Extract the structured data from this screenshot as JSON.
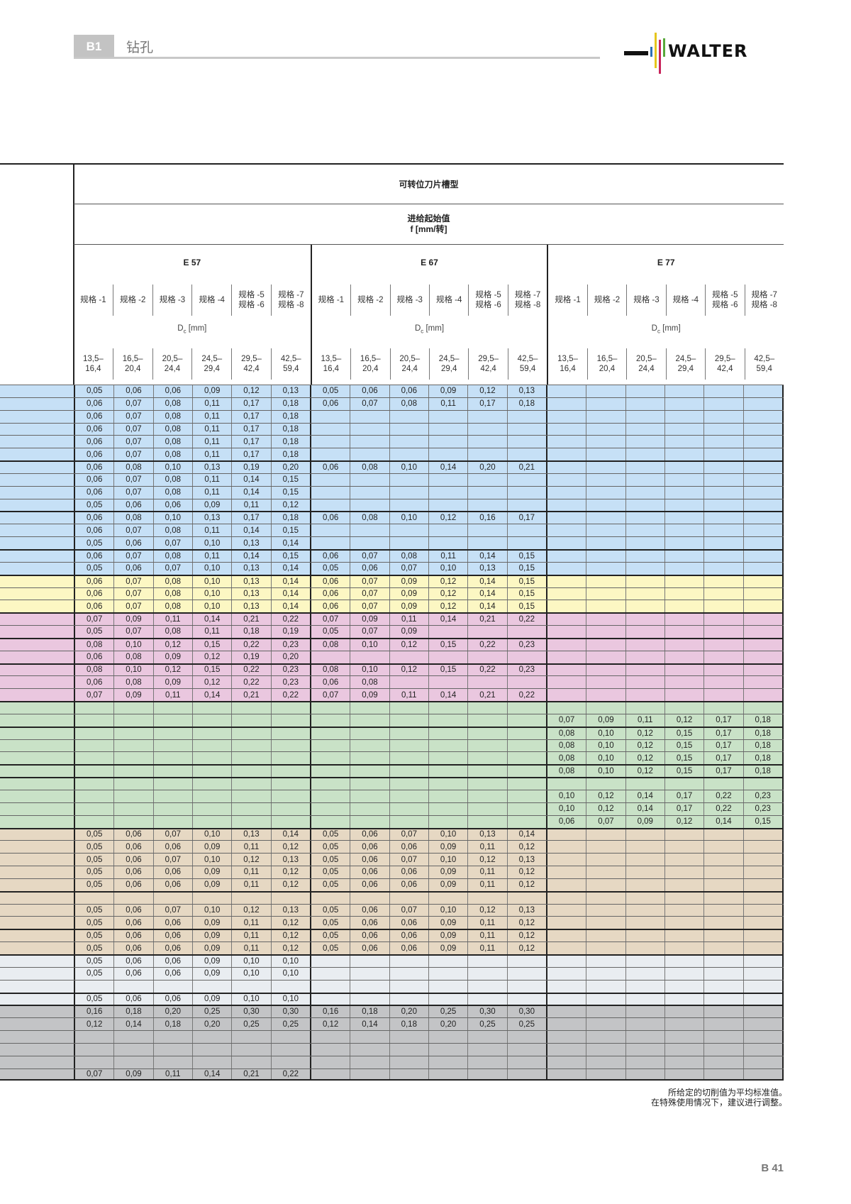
{
  "header": {
    "chapter_code": "B1",
    "chapter_title": "钻孔",
    "logo_text": "WALTER"
  },
  "table": {
    "title": "可转位刀片槽型",
    "feed_label": "进给起始值",
    "feed_unit": "f [mm/转]",
    "groups": [
      "E 57",
      "E 67",
      "E 77"
    ],
    "sizes": [
      "规格 -1",
      "规格 -2",
      "规格 -3",
      "规格 -4",
      "规格 -5\n规格 -6",
      "规格 -7\n规格 -8"
    ],
    "dc_label": {
      "main": "D",
      "sub": "c",
      "unit": " [mm]"
    },
    "ranges": [
      "13,5–\n16,4",
      "16,5–\n20,4",
      "20,5–\n24,4",
      "24,5–\n29,4",
      "29,5–\n42,4",
      "42,5–\n59,4"
    ],
    "band_colors": {
      "blue": "#c6e0f6",
      "yellow": "#fcf7c3",
      "pink": "#eac7df",
      "green": "#c9e2c7",
      "tan": "#e6d8c3",
      "lightgray": "#e9edf1",
      "darkgray": "#c3c4c6"
    },
    "rows": [
      {
        "band": "blue",
        "e57": [
          "0,05",
          "0,06",
          "0,06",
          "0,09",
          "0,12",
          "0,13"
        ],
        "e67": [
          "0,05",
          "0,06",
          "0,06",
          "0,09",
          "0,12",
          "0,13"
        ],
        "e77": []
      },
      {
        "band": "blue",
        "e57": [
          "0,06",
          "0,07",
          "0,08",
          "0,11",
          "0,17",
          "0,18"
        ],
        "e67": [
          "0,06",
          "0,07",
          "0,08",
          "0,11",
          "0,17",
          "0,18"
        ],
        "e77": []
      },
      {
        "band": "blue",
        "e57": [
          "0,06",
          "0,07",
          "0,08",
          "0,11",
          "0,17",
          "0,18"
        ],
        "e67": [],
        "e77": []
      },
      {
        "band": "blue",
        "e57": [
          "0,06",
          "0,07",
          "0,08",
          "0,11",
          "0,17",
          "0,18"
        ],
        "e67": [],
        "e77": []
      },
      {
        "band": "blue",
        "e57": [
          "0,06",
          "0,07",
          "0,08",
          "0,11",
          "0,17",
          "0,18"
        ],
        "e67": [],
        "e77": []
      },
      {
        "band": "blue",
        "e57": [
          "0,06",
          "0,07",
          "0,08",
          "0,11",
          "0,17",
          "0,18"
        ],
        "e67": [],
        "e77": []
      },
      {
        "band": "blue",
        "e57": [
          "0,06",
          "0,08",
          "0,10",
          "0,13",
          "0,19",
          "0,20"
        ],
        "e67": [
          "0,06",
          "0,08",
          "0,10",
          "0,14",
          "0,20",
          "0,21"
        ],
        "e77": []
      },
      {
        "band": "blue",
        "e57": [
          "0,06",
          "0,07",
          "0,08",
          "0,11",
          "0,14",
          "0,15"
        ],
        "e67": [],
        "e77": []
      },
      {
        "band": "blue",
        "e57": [
          "0,06",
          "0,07",
          "0,08",
          "0,11",
          "0,14",
          "0,15"
        ],
        "e67": [],
        "e77": []
      },
      {
        "band": "blue",
        "e57": [
          "0,05",
          "0,06",
          "0,06",
          "0,09",
          "0,11",
          "0,12"
        ],
        "e67": [],
        "e77": []
      },
      {
        "band": "blue",
        "e57": [
          "0,06",
          "0,08",
          "0,10",
          "0,13",
          "0,17",
          "0,18"
        ],
        "e67": [
          "0,06",
          "0,08",
          "0,10",
          "0,12",
          "0,16",
          "0,17"
        ],
        "e77": []
      },
      {
        "band": "blue",
        "e57": [
          "0,06",
          "0,07",
          "0,08",
          "0,11",
          "0,14",
          "0,15"
        ],
        "e67": [],
        "e77": []
      },
      {
        "band": "blue",
        "e57": [
          "0,05",
          "0,06",
          "0,07",
          "0,10",
          "0,13",
          "0,14"
        ],
        "e67": [],
        "e77": []
      },
      {
        "band": "blue",
        "e57": [
          "0,06",
          "0,07",
          "0,08",
          "0,11",
          "0,14",
          "0,15"
        ],
        "e67": [
          "0,06",
          "0,07",
          "0,08",
          "0,11",
          "0,14",
          "0,15"
        ],
        "e77": []
      },
      {
        "band": "blue",
        "e57": [
          "0,05",
          "0,06",
          "0,07",
          "0,10",
          "0,13",
          "0,14"
        ],
        "e67": [
          "0,05",
          "0,06",
          "0,07",
          "0,10",
          "0,13",
          "0,15"
        ],
        "e77": []
      },
      {
        "band": "yellow",
        "e57": [
          "0,06",
          "0,07",
          "0,08",
          "0,10",
          "0,13",
          "0,14"
        ],
        "e67": [
          "0,06",
          "0,07",
          "0,09",
          "0,12",
          "0,14",
          "0,15"
        ],
        "e77": []
      },
      {
        "band": "yellow",
        "e57": [
          "0,06",
          "0,07",
          "0,08",
          "0,10",
          "0,13",
          "0,14"
        ],
        "e67": [
          "0,06",
          "0,07",
          "0,09",
          "0,12",
          "0,14",
          "0,15"
        ],
        "e77": []
      },
      {
        "band": "yellow",
        "e57": [
          "0,06",
          "0,07",
          "0,08",
          "0,10",
          "0,13",
          "0,14"
        ],
        "e67": [
          "0,06",
          "0,07",
          "0,09",
          "0,12",
          "0,14",
          "0,15"
        ],
        "e77": []
      },
      {
        "band": "pink",
        "e57": [
          "0,07",
          "0,09",
          "0,11",
          "0,14",
          "0,21",
          "0,22"
        ],
        "e67": [
          "0,07",
          "0,09",
          "0,11",
          "0,14",
          "0,21",
          "0,22"
        ],
        "e77": []
      },
      {
        "band": "pink",
        "e57": [
          "0,05",
          "0,07",
          "0,08",
          "0,11",
          "0,18",
          "0,19"
        ],
        "e67": [
          "0,05",
          "0,07",
          "0,09"
        ],
        "e77": []
      },
      {
        "band": "pink",
        "e57": [
          "0,08",
          "0,10",
          "0,12",
          "0,15",
          "0,22",
          "0,23"
        ],
        "e67": [
          "0,08",
          "0,10",
          "0,12",
          "0,15",
          "0,22",
          "0,23"
        ],
        "e77": []
      },
      {
        "band": "pink",
        "e57": [
          "0,06",
          "0,08",
          "0,09",
          "0,12",
          "0,19",
          "0,20"
        ],
        "e67": [],
        "e77": []
      },
      {
        "band": "pink",
        "e57": [
          "0,08",
          "0,10",
          "0,12",
          "0,15",
          "0,22",
          "0,23"
        ],
        "e67": [
          "0,08",
          "0,10",
          "0,12",
          "0,15",
          "0,22",
          "0,23"
        ],
        "e77": []
      },
      {
        "band": "pink",
        "e57": [
          "0,06",
          "0,08",
          "0,09",
          "0,12",
          "0,22",
          "0,23"
        ],
        "e67": [
          "0,06",
          "0,08"
        ],
        "e77": []
      },
      {
        "band": "pink",
        "e57": [
          "0,07",
          "0,09",
          "0,11",
          "0,14",
          "0,21",
          "0,22"
        ],
        "e67": [
          "0,07",
          "0,09",
          "0,11",
          "0,14",
          "0,21",
          "0,22"
        ],
        "e77": []
      },
      {
        "band": "green",
        "e57": [],
        "e67": [],
        "e77": []
      },
      {
        "band": "green",
        "e57": [],
        "e67": [],
        "e77": [
          "0,07",
          "0,09",
          "0,11",
          "0,12",
          "0,17",
          "0,18"
        ]
      },
      {
        "band": "green",
        "e57": [],
        "e67": [],
        "e77": [
          "0,08",
          "0,10",
          "0,12",
          "0,15",
          "0,17",
          "0,18"
        ]
      },
      {
        "band": "green",
        "e57": [],
        "e67": [],
        "e77": [
          "0,08",
          "0,10",
          "0,12",
          "0,15",
          "0,17",
          "0,18"
        ]
      },
      {
        "band": "green",
        "e57": [],
        "e67": [],
        "e77": [
          "0,08",
          "0,10",
          "0,12",
          "0,15",
          "0,17",
          "0,18"
        ]
      },
      {
        "band": "green",
        "e57": [],
        "e67": [],
        "e77": [
          "0,08",
          "0,10",
          "0,12",
          "0,15",
          "0,17",
          "0,18"
        ]
      },
      {
        "band": "green",
        "e57": [],
        "e67": [],
        "e77": []
      },
      {
        "band": "green",
        "e57": [],
        "e67": [],
        "e77": [
          "0,10",
          "0,12",
          "0,14",
          "0,17",
          "0,22",
          "0,23"
        ]
      },
      {
        "band": "green",
        "e57": [],
        "e67": [],
        "e77": [
          "0,10",
          "0,12",
          "0,14",
          "0,17",
          "0,22",
          "0,23"
        ]
      },
      {
        "band": "green",
        "e57": [],
        "e67": [],
        "e77": [
          "0,06",
          "0,07",
          "0,09",
          "0,12",
          "0,14",
          "0,15"
        ]
      },
      {
        "band": "tan",
        "e57": [
          "0,05",
          "0,06",
          "0,07",
          "0,10",
          "0,13",
          "0,14"
        ],
        "e67": [
          "0,05",
          "0,06",
          "0,07",
          "0,10",
          "0,13",
          "0,14"
        ],
        "e77": []
      },
      {
        "band": "tan",
        "e57": [
          "0,05",
          "0,06",
          "0,06",
          "0,09",
          "0,11",
          "0,12"
        ],
        "e67": [
          "0,05",
          "0,06",
          "0,06",
          "0,09",
          "0,11",
          "0,12"
        ],
        "e77": []
      },
      {
        "band": "tan",
        "e57": [
          "0,05",
          "0,06",
          "0,07",
          "0,10",
          "0,12",
          "0,13"
        ],
        "e67": [
          "0,05",
          "0,06",
          "0,07",
          "0,10",
          "0,12",
          "0,13"
        ],
        "e77": []
      },
      {
        "band": "tan",
        "e57": [
          "0,05",
          "0,06",
          "0,06",
          "0,09",
          "0,11",
          "0,12"
        ],
        "e67": [
          "0,05",
          "0,06",
          "0,06",
          "0,09",
          "0,11",
          "0,12"
        ],
        "e77": []
      },
      {
        "band": "tan",
        "e57": [
          "0,05",
          "0,06",
          "0,06",
          "0,09",
          "0,11",
          "0,12"
        ],
        "e67": [
          "0,05",
          "0,06",
          "0,06",
          "0,09",
          "0,11",
          "0,12"
        ],
        "e77": []
      },
      {
        "band": "tan",
        "e57": [],
        "e67": [],
        "e77": []
      },
      {
        "band": "tan",
        "e57": [
          "0,05",
          "0,06",
          "0,07",
          "0,10",
          "0,12",
          "0,13"
        ],
        "e67": [
          "0,05",
          "0,06",
          "0,07",
          "0,10",
          "0,12",
          "0,13"
        ],
        "e77": []
      },
      {
        "band": "tan",
        "e57": [
          "0,05",
          "0,06",
          "0,06",
          "0,09",
          "0,11",
          "0,12"
        ],
        "e67": [
          "0,05",
          "0,06",
          "0,06",
          "0,09",
          "0,11",
          "0,12"
        ],
        "e77": []
      },
      {
        "band": "tan",
        "e57": [
          "0,05",
          "0,06",
          "0,06",
          "0,09",
          "0,11",
          "0,12"
        ],
        "e67": [
          "0,05",
          "0,06",
          "0,06",
          "0,09",
          "0,11",
          "0,12"
        ],
        "e77": []
      },
      {
        "band": "tan",
        "e57": [
          "0,05",
          "0,06",
          "0,06",
          "0,09",
          "0,11",
          "0,12"
        ],
        "e67": [
          "0,05",
          "0,06",
          "0,06",
          "0,09",
          "0,11",
          "0,12"
        ],
        "e77": []
      },
      {
        "band": "lightgray",
        "e57": [
          "0,05",
          "0,06",
          "0,06",
          "0,09",
          "0,10",
          "0,10"
        ],
        "e67": [],
        "e77": []
      },
      {
        "band": "lightgray",
        "e57": [
          "0,05",
          "0,06",
          "0,06",
          "0,09",
          "0,10",
          "0,10"
        ],
        "e67": [],
        "e77": []
      },
      {
        "band": "lightgray",
        "e57": [],
        "e67": [],
        "e77": []
      },
      {
        "band": "lightgray",
        "e57": [
          "0,05",
          "0,06",
          "0,06",
          "0,09",
          "0,10",
          "0,10"
        ],
        "e67": [],
        "e77": []
      },
      {
        "band": "darkgray",
        "e57": [
          "0,16",
          "0,18",
          "0,20",
          "0,25",
          "0,30",
          "0,30"
        ],
        "e67": [
          "0,16",
          "0,18",
          "0,20",
          "0,25",
          "0,30",
          "0,30"
        ],
        "e77": []
      },
      {
        "band": "darkgray",
        "e57": [
          "0,12",
          "0,14",
          "0,18",
          "0,20",
          "0,25",
          "0,25"
        ],
        "e67": [
          "0,12",
          "0,14",
          "0,18",
          "0,20",
          "0,25",
          "0,25"
        ],
        "e77": []
      },
      {
        "band": "darkgray",
        "e57": [],
        "e67": [],
        "e77": []
      },
      {
        "band": "darkgray",
        "e57": [],
        "e67": [],
        "e77": []
      },
      {
        "band": "darkgray",
        "e57": [],
        "e67": [],
        "e77": []
      },
      {
        "band": "darkgray",
        "e57": [
          "0,07",
          "0,09",
          "0,11",
          "0,14",
          "0,21",
          "0,22"
        ],
        "e67": [],
        "e77": []
      }
    ]
  },
  "footer": {
    "note_line1": "所给定的切削值为平均标准值。",
    "note_line2": "在特殊使用情况下，建议进行调整。",
    "page_number": "B 41"
  }
}
